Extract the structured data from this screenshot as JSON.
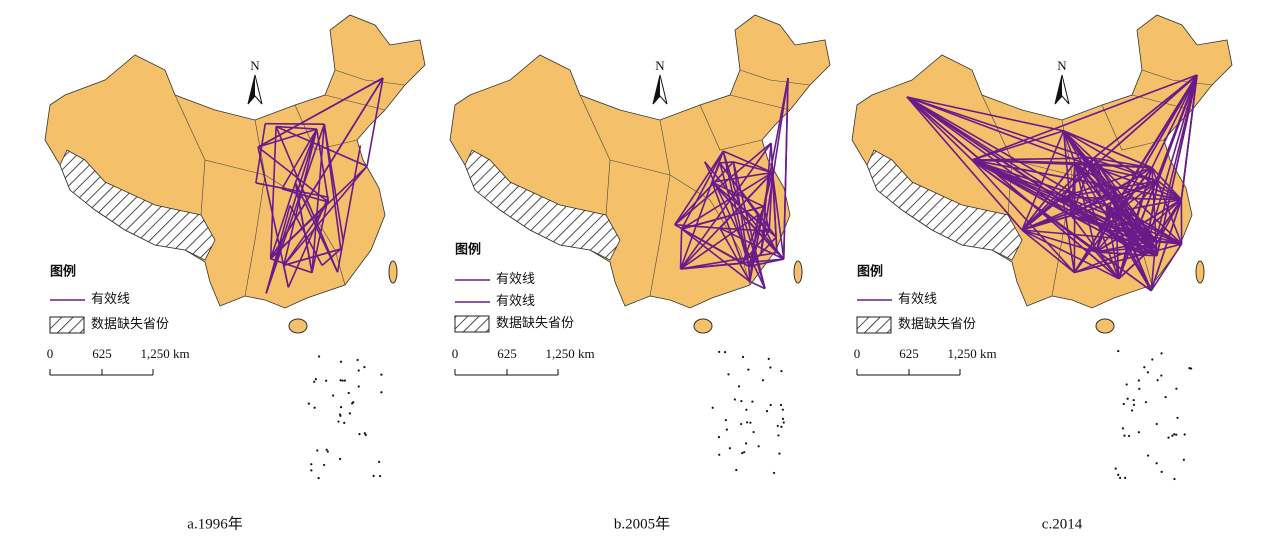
{
  "panels": [
    {
      "north": "N",
      "legend": {
        "title": "图例",
        "items": [
          "有效线",
          "数据缺失省份"
        ]
      },
      "scale": [
        "0",
        "625",
        "1,250 km"
      ],
      "caption": "a.1996年"
    },
    {
      "north": "N",
      "legend": {
        "title": "图例",
        "items": [
          "有效线",
          "有效线",
          "数据缺失省份"
        ]
      },
      "scale": [
        "0",
        "625",
        "1,250 km"
      ],
      "caption": "b.2005年"
    },
    {
      "north": "N",
      "legend": {
        "title": "图例",
        "items": [
          "有效线",
          "数据缺失省份"
        ]
      },
      "scale": [
        "0",
        "625",
        "1,250 km"
      ],
      "caption": "c.2014"
    }
  ]
}
